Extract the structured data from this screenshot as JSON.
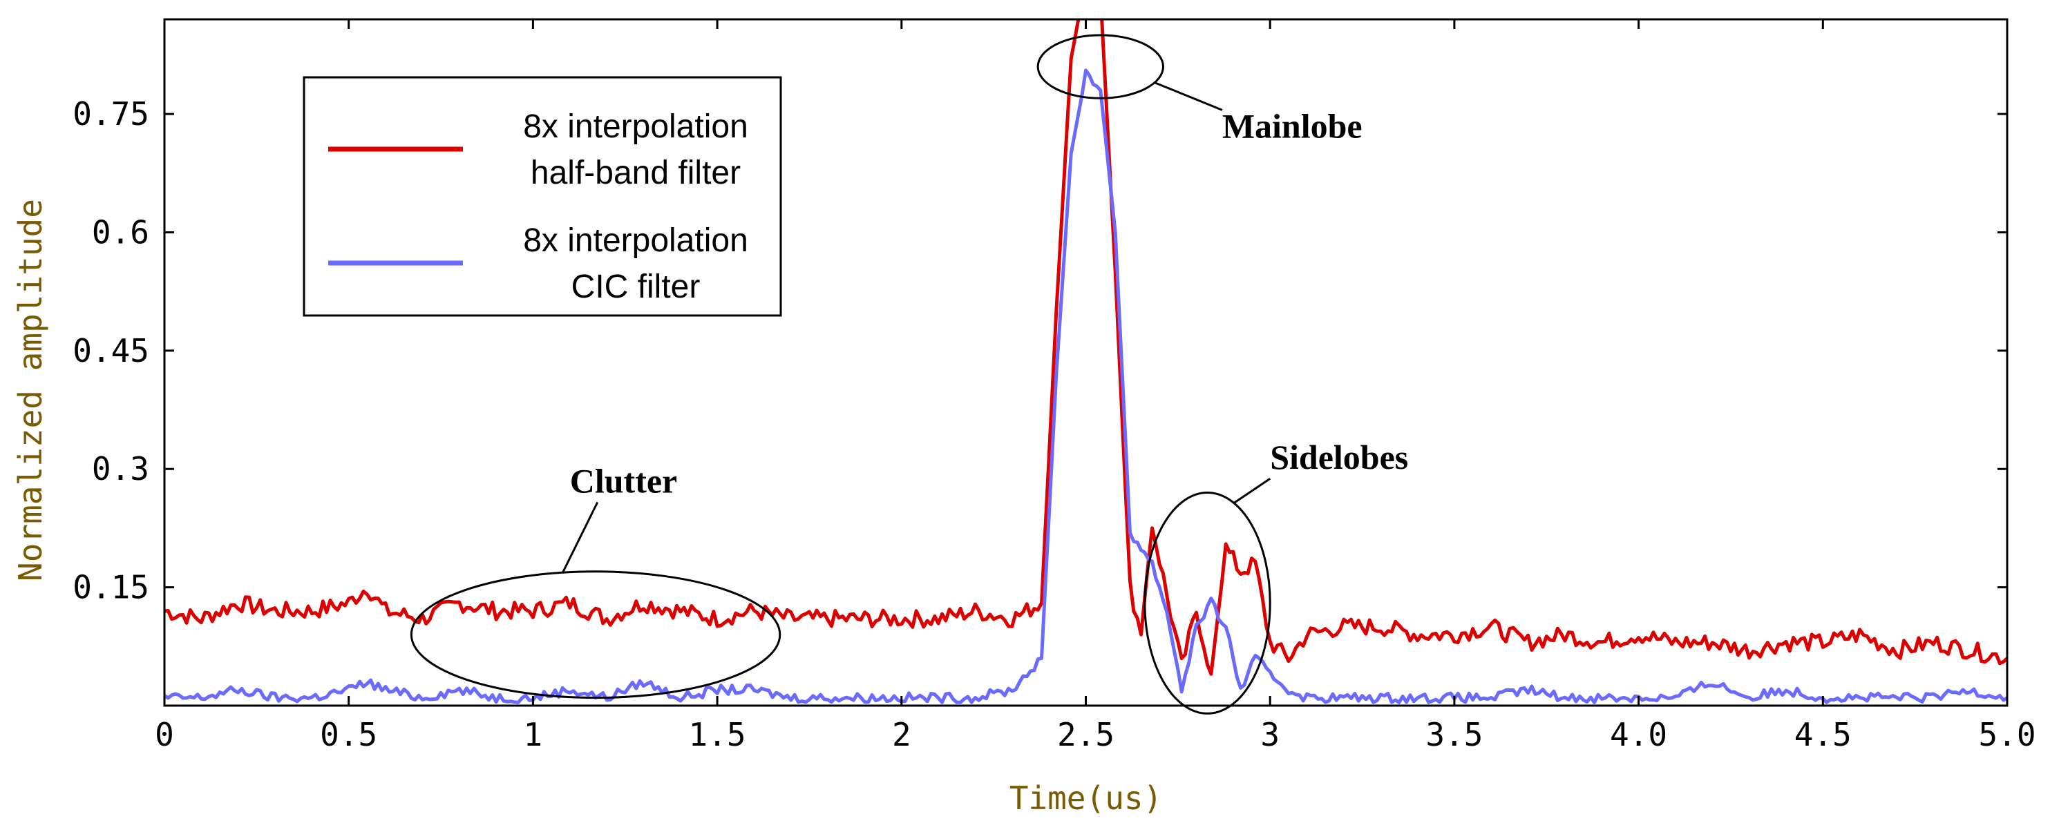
{
  "chart_data": {
    "type": "line",
    "title": "",
    "xlabel": "Time(us)",
    "ylabel": "Normalized amplitude",
    "xlim": [
      0,
      5.0
    ],
    "ylim": [
      0,
      0.87
    ],
    "x_ticks": [
      {
        "v": 0,
        "label": "0"
      },
      {
        "v": 0.5,
        "label": "0.5"
      },
      {
        "v": 1,
        "label": "1"
      },
      {
        "v": 1.5,
        "label": "1.5"
      },
      {
        "v": 2,
        "label": "2"
      },
      {
        "v": 2.5,
        "label": "2.5"
      },
      {
        "v": 3,
        "label": "3"
      },
      {
        "v": 3.5,
        "label": "3.5"
      },
      {
        "v": 4.0,
        "label": "4.0"
      },
      {
        "v": 4.5,
        "label": "4.5"
      },
      {
        "v": 5.0,
        "label": "5.0"
      }
    ],
    "y_ticks": [
      {
        "v": 0.15,
        "label": "0.15"
      },
      {
        "v": 0.3,
        "label": "0.3"
      },
      {
        "v": 0.45,
        "label": "0.45"
      },
      {
        "v": 0.6,
        "label": "0.6"
      },
      {
        "v": 0.75,
        "label": "0.75"
      }
    ],
    "legend": {
      "position": "top-left",
      "entries": [
        {
          "line1": "8x interpolation",
          "line2": "half-band filter",
          "color": "#dd0000"
        },
        {
          "line1": "8x interpolation",
          "line2": "CIC filter",
          "color": "#6a6aff"
        }
      ]
    },
    "series": [
      {
        "name": "8x interpolation half-band filter",
        "color": "#dd0000",
        "x": [
          0,
          0.1,
          0.2,
          0.3,
          0.4,
          0.5,
          0.55,
          0.6,
          0.7,
          0.8,
          0.9,
          1.0,
          1.1,
          1.2,
          1.3,
          1.4,
          1.5,
          1.6,
          1.7,
          1.8,
          1.9,
          2.0,
          2.1,
          2.2,
          2.3,
          2.38,
          2.42,
          2.46,
          2.5,
          2.54,
          2.58,
          2.62,
          2.65,
          2.68,
          2.72,
          2.76,
          2.8,
          2.84,
          2.88,
          2.92,
          2.96,
          3.0,
          3.05,
          3.1,
          3.2,
          3.3,
          3.4,
          3.5,
          3.6,
          3.7,
          3.8,
          3.9,
          4.0,
          4.1,
          4.2,
          4.3,
          4.4,
          4.5,
          4.6,
          4.7,
          4.8,
          4.9,
          5.0
        ],
        "values": [
          0.12,
          0.11,
          0.13,
          0.12,
          0.12,
          0.13,
          0.15,
          0.12,
          0.11,
          0.13,
          0.12,
          0.12,
          0.13,
          0.11,
          0.13,
          0.12,
          0.11,
          0.12,
          0.11,
          0.11,
          0.11,
          0.11,
          0.11,
          0.12,
          0.11,
          0.13,
          0.5,
          0.82,
          0.92,
          0.9,
          0.55,
          0.15,
          0.09,
          0.23,
          0.14,
          0.05,
          0.12,
          0.04,
          0.2,
          0.17,
          0.18,
          0.08,
          0.06,
          0.09,
          0.1,
          0.1,
          0.09,
          0.09,
          0.1,
          0.08,
          0.09,
          0.08,
          0.09,
          0.08,
          0.08,
          0.07,
          0.08,
          0.08,
          0.09,
          0.07,
          0.08,
          0.07,
          0.06
        ]
      },
      {
        "name": "8x interpolation CIC filter",
        "color": "#6a6aff",
        "x": [
          0,
          0.1,
          0.2,
          0.3,
          0.4,
          0.5,
          0.55,
          0.6,
          0.7,
          0.8,
          0.9,
          1.0,
          1.1,
          1.2,
          1.3,
          1.4,
          1.5,
          1.6,
          1.7,
          1.8,
          1.9,
          2.0,
          2.1,
          2.2,
          2.3,
          2.38,
          2.42,
          2.46,
          2.5,
          2.54,
          2.58,
          2.62,
          2.65,
          2.68,
          2.72,
          2.76,
          2.8,
          2.84,
          2.88,
          2.92,
          2.96,
          3.0,
          3.05,
          3.1,
          3.2,
          3.3,
          3.4,
          3.5,
          3.6,
          3.7,
          3.8,
          3.9,
          4.0,
          4.1,
          4.2,
          4.3,
          4.4,
          4.5,
          4.6,
          4.7,
          4.8,
          4.9,
          5.0
        ],
        "values": [
          0.01,
          0.01,
          0.02,
          0.01,
          0.01,
          0.02,
          0.03,
          0.02,
          0.01,
          0.02,
          0.01,
          0.01,
          0.02,
          0.01,
          0.03,
          0.01,
          0.02,
          0.02,
          0.01,
          0.01,
          0.01,
          0.01,
          0.01,
          0.01,
          0.02,
          0.06,
          0.42,
          0.7,
          0.8,
          0.78,
          0.6,
          0.22,
          0.2,
          0.18,
          0.12,
          0.02,
          0.1,
          0.13,
          0.1,
          0.02,
          0.06,
          0.04,
          0.02,
          0.01,
          0.01,
          0.01,
          0.01,
          0.01,
          0.01,
          0.02,
          0.01,
          0.01,
          0.01,
          0.01,
          0.03,
          0.01,
          0.02,
          0.01,
          0.01,
          0.01,
          0.01,
          0.02,
          0.01
        ]
      }
    ],
    "annotations": [
      {
        "label": "Mainlobe",
        "ellipse_center": [
          2.54,
          0.81
        ],
        "ellipse_radii": [
          0.17,
          0.04
        ],
        "text_at": [
          2.87,
          0.72
        ]
      },
      {
        "label": "Sidelobes",
        "ellipse_center": [
          2.83,
          0.13
        ],
        "ellipse_radii": [
          0.17,
          0.14
        ],
        "text_at": [
          3.0,
          0.3
        ]
      },
      {
        "label": "Clutter",
        "ellipse_center": [
          1.17,
          0.09
        ],
        "ellipse_radii": [
          0.5,
          0.08
        ],
        "text_at": [
          1.1,
          0.27
        ]
      }
    ]
  }
}
